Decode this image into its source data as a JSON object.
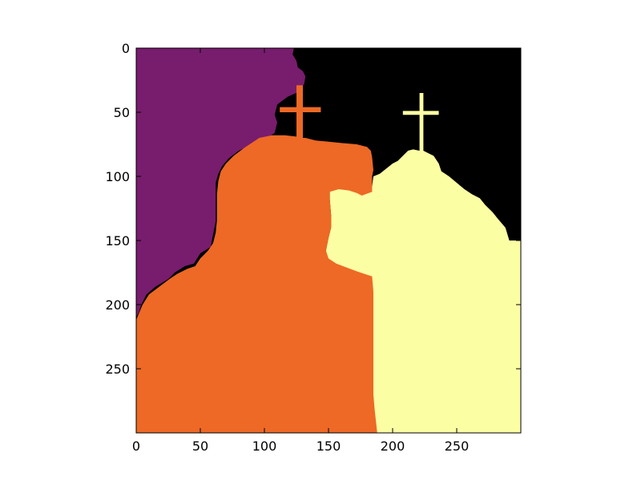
{
  "chart_data": {
    "type": "heatmap",
    "title": "",
    "xlabel": "",
    "ylabel": "",
    "xlim": [
      0,
      300
    ],
    "ylim": [
      300,
      0
    ],
    "x_ticks": [
      0,
      50,
      100,
      150,
      200,
      250
    ],
    "y_ticks": [
      0,
      50,
      100,
      150,
      200,
      250
    ],
    "x_tick_labels": [
      "0",
      "50",
      "100",
      "150",
      "200",
      "250"
    ],
    "y_tick_labels": [
      "0",
      "50",
      "100",
      "150",
      "200",
      "250"
    ],
    "grid": false,
    "colormap": "inferno",
    "segments": [
      {
        "label": 0,
        "color": "#000000",
        "region": "sky behind the right tower"
      },
      {
        "label": 1,
        "color": "#781c6d",
        "region": "sky at upper left"
      },
      {
        "label": 2,
        "color": "#ed6925",
        "region": "left building and its cross"
      },
      {
        "label": 3,
        "color": "#fcfea4",
        "region": "right building and its cross"
      }
    ]
  }
}
